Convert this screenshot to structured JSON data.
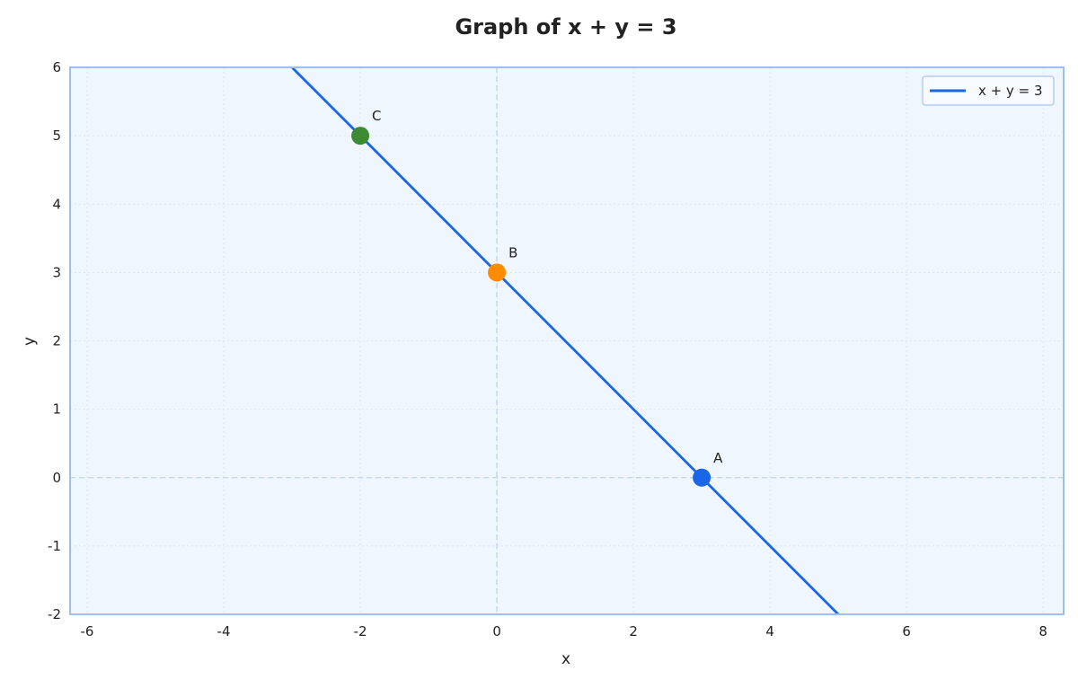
{
  "chart_data": {
    "type": "line",
    "title": "Graph of x + y = 3",
    "xlabel": "x",
    "ylabel": "y",
    "xlim": [
      -6.25,
      8.3
    ],
    "ylim": [
      -2,
      6
    ],
    "xticks": [
      -6,
      -4,
      -2,
      0,
      2,
      4,
      6,
      8
    ],
    "yticks": [
      -2,
      -1,
      0,
      1,
      2,
      3,
      4,
      5,
      6
    ],
    "xtick_labels": [
      "-6",
      "-4",
      "-2",
      "0",
      "2",
      "4",
      "6",
      "8"
    ],
    "ytick_labels": [
      "-2",
      "-1",
      "0",
      "1",
      "2",
      "3",
      "4",
      "5",
      "6"
    ],
    "grid": true,
    "legend_position": "top-right",
    "series": [
      {
        "name": "x + y = 3",
        "x": [
          -3,
          5
        ],
        "y": [
          6,
          -2
        ],
        "color": "#1a66e8"
      }
    ],
    "points": [
      {
        "label": "A",
        "x": 3,
        "y": 0,
        "color": "#1a66e8"
      },
      {
        "label": "B",
        "x": 0,
        "y": 3,
        "color": "#ff8c00"
      },
      {
        "label": "C",
        "x": -2,
        "y": 5,
        "color": "#3d8a35"
      }
    ],
    "reference_lines": {
      "x": 0,
      "y": 0
    },
    "colors": {
      "plot_background": "#f0f6fd",
      "plot_border": "#9dbff0",
      "grid": "#dde6f2",
      "reference": "#c2d8f5"
    }
  }
}
